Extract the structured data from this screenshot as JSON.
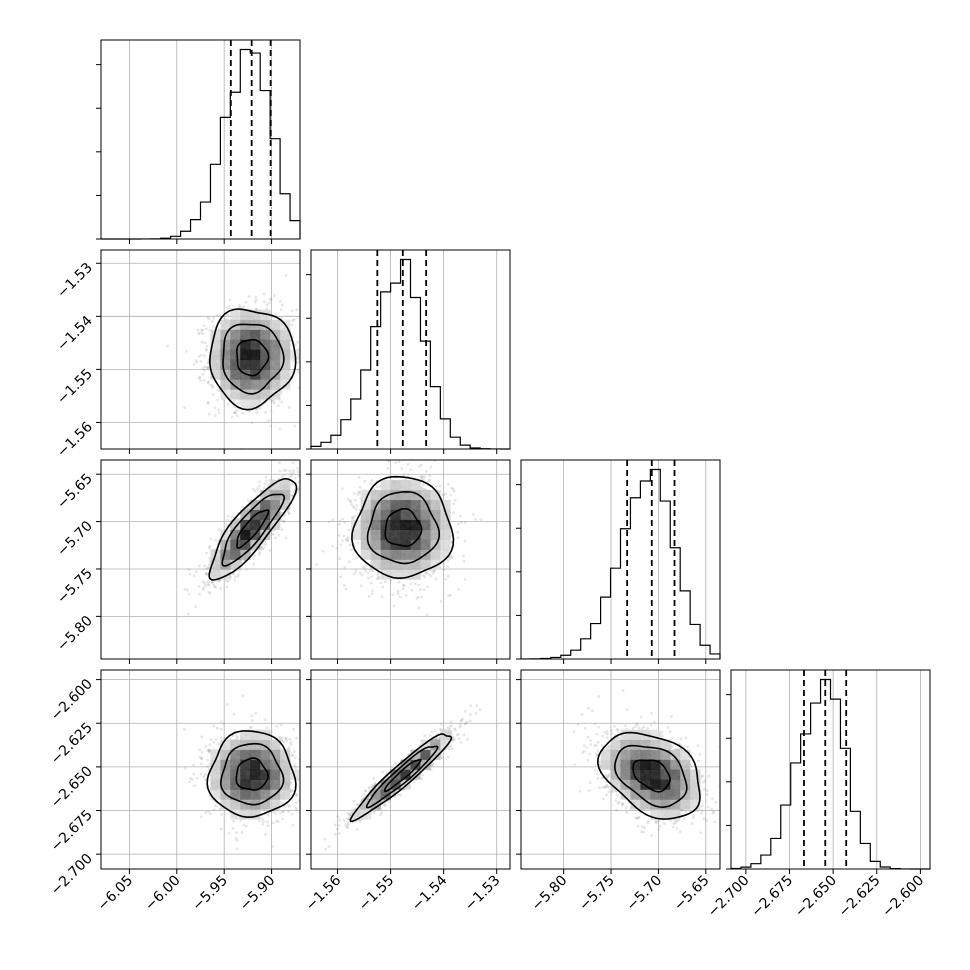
{
  "chart_data": {
    "type": "corner",
    "parameters": [
      {
        "ticks": [
          -6.05,
          -6.0,
          -5.95,
          -5.9
        ],
        "tick_labels": [
          "−6.05",
          "−6.00",
          "−5.95",
          "−5.90"
        ],
        "range": [
          -6.08,
          -5.87
        ],
        "quantiles": [
          -5.943,
          -5.921,
          -5.901
        ],
        "median": -5.921,
        "sigma": 0.022
      },
      {
        "ticks": [
          -1.56,
          -1.55,
          -1.54,
          -1.53
        ],
        "tick_labels": [
          "−1.56",
          "−1.55",
          "−1.54",
          "−1.53"
        ],
        "range": [
          -1.565,
          -1.5275
        ],
        "quantiles": [
          -1.5525,
          -1.5477,
          -1.5433
        ],
        "median": -1.5477,
        "sigma": 0.0045
      },
      {
        "ticks": [
          -5.8,
          -5.75,
          -5.7,
          -5.65
        ],
        "tick_labels": [
          "−5.80",
          "−5.75",
          "−5.70",
          "−5.65"
        ],
        "range": [
          -5.845,
          -5.635
        ],
        "quantiles": [
          -5.733,
          -5.707,
          -5.683
        ],
        "median": -5.707,
        "sigma": 0.026
      },
      {
        "ticks": [
          -2.7,
          -2.675,
          -2.65,
          -2.625,
          -2.6
        ],
        "tick_labels": [
          "−2.700",
          "−2.675",
          "−2.650",
          "−2.625",
          "−2.600"
        ],
        "range": [
          -2.7085,
          -2.5945
        ],
        "quantiles": [
          -2.6667,
          -2.6545,
          -2.6425
        ],
        "median": -2.6545,
        "sigma": 0.012
      }
    ],
    "correlations": [
      [
        1,
        0,
        0.85,
        0
      ],
      [
        0,
        1,
        0,
        0.95
      ],
      [
        0.85,
        0,
        1,
        -0.35
      ],
      [
        0,
        0.95,
        -0.35,
        1
      ]
    ],
    "histogram_ticks_labeled": false,
    "grid": true
  }
}
